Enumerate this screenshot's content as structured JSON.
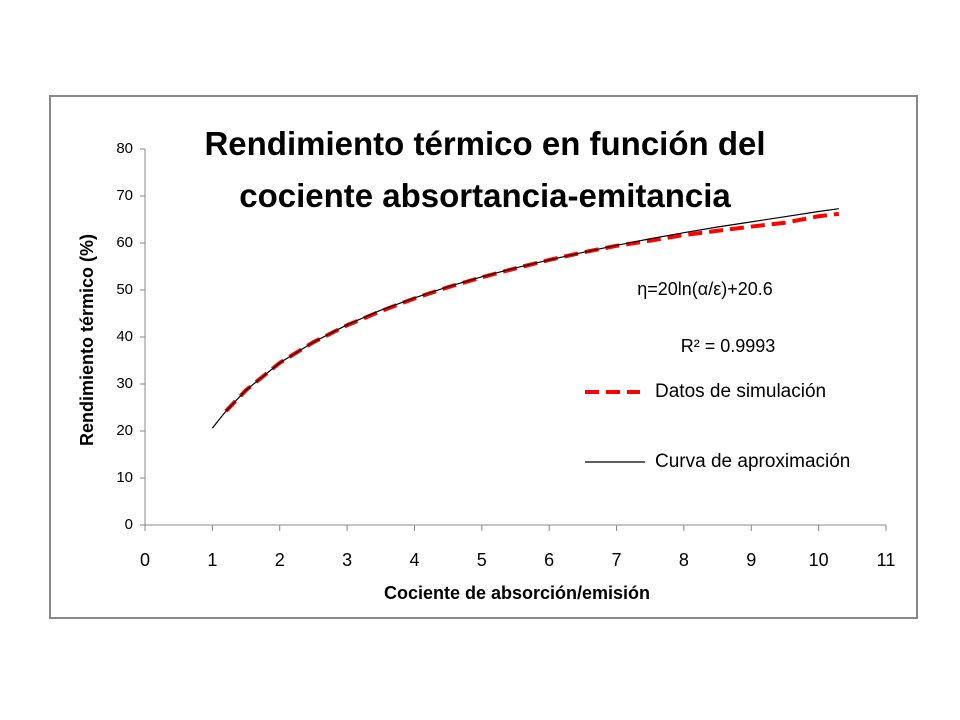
{
  "chart_data": {
    "type": "line",
    "title": "Rendimiento térmico en función del cociente absortancia-emitancia",
    "x_label": "Cociente de absorción/emisión",
    "y_label": "Rendimiento térmico (%)",
    "annotations": [
      "η=20ln(α/ε)+20.6",
      "R² = 0.9993"
    ],
    "x": [
      1,
      1.2,
      1.5,
      2,
      2.5,
      3,
      3.5,
      4,
      4.5,
      5,
      5.5,
      6,
      6.5,
      7,
      7.5,
      8,
      8.5,
      9,
      9.5,
      10,
      10.3
    ],
    "series": [
      {
        "name": "Datos de simulación",
        "color": "#ff0000",
        "dash": true,
        "values": [
          null,
          24.2,
          28.7,
          34.5,
          38.9,
          42.5,
          45.5,
          48.2,
          50.6,
          52.7,
          54.6,
          56.4,
          58.0,
          59.4,
          60.5,
          61.7,
          62.6,
          63.5,
          64.3,
          65.7,
          66.2
        ]
      },
      {
        "name": "Curva de aproximación",
        "color": "#000000",
        "dash": false,
        "values": [
          20.6,
          24.2,
          28.7,
          34.5,
          38.9,
          42.6,
          45.7,
          48.3,
          50.7,
          52.8,
          54.7,
          56.4,
          58.0,
          59.5,
          60.9,
          62.2,
          63.4,
          64.5,
          65.6,
          66.7,
          67.3
        ]
      }
    ],
    "xlim": [
      0,
      11
    ],
    "xticks": [
      0,
      1,
      2,
      3,
      4,
      5,
      6,
      7,
      8,
      9,
      10,
      11
    ],
    "ylim": [
      0,
      80
    ],
    "yticks": [
      0,
      10,
      20,
      30,
      40,
      50,
      60,
      70,
      80
    ],
    "grid": false
  }
}
